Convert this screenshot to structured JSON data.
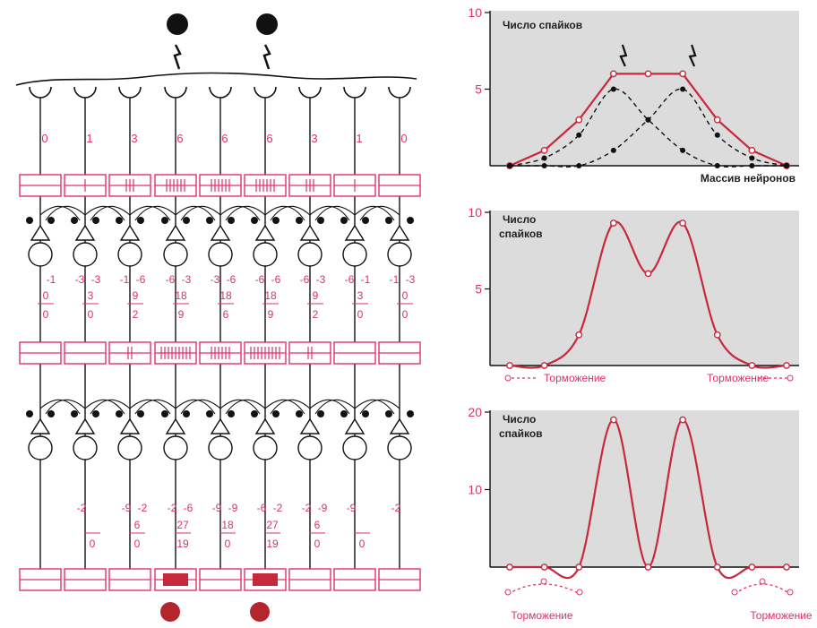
{
  "network": {
    "stimuli_top_count": 2,
    "stimulus_columns_top": [
      3,
      5
    ],
    "output_columns_bottom": [
      3,
      5
    ],
    "layer1": {
      "spike_counts": [
        "0",
        "1",
        "3",
        "6",
        "6",
        "6",
        "3",
        "1",
        "0"
      ]
    },
    "layer2": {
      "inhib_left": [
        "",
        "-3",
        "-1",
        "-6",
        "-3",
        "-6",
        "-6",
        "-6",
        "-1"
      ],
      "inhib_right": [
        "-1",
        "-3",
        "-6",
        "-3",
        "-6",
        "-6",
        "-3",
        "-1",
        "-3"
      ],
      "gain": [
        "0",
        "3",
        "9",
        "18",
        "18",
        "18",
        "9",
        "3",
        "0"
      ],
      "result": [
        "0",
        "0",
        "2",
        "9",
        "6",
        "9",
        "2",
        "0",
        "0"
      ]
    },
    "layer3": {
      "inhib_left": [
        "",
        "-2",
        "-9",
        "-2",
        "-9",
        "-6",
        "-2",
        "-9",
        "-2"
      ],
      "inhib_right": [
        "",
        "",
        "-2",
        "-6",
        "-9",
        "-2",
        "-9",
        "",
        ""
      ],
      "gain": [
        "",
        "",
        "6",
        "27",
        "18",
        "27",
        "6",
        "",
        ""
      ],
      "result": [
        "",
        "0",
        "0",
        "19",
        "0",
        "19",
        "0",
        "0",
        ""
      ]
    }
  },
  "charts": {
    "top": {
      "ylabel": "Число спайков",
      "xlabel": "Массив нейронов",
      "ytick_labels": [
        "10",
        "5"
      ]
    },
    "middle": {
      "ylabel": "Число спайков",
      "ytick_labels": [
        "10",
        "5"
      ],
      "inhibition_left": "Торможение",
      "inhibition_right": "Торможение"
    },
    "bottom": {
      "ylabel": "Число спайков",
      "ytick_labels": [
        "20",
        "10"
      ],
      "inhibition_left": "Торможение",
      "inhibition_right": "Торможение"
    }
  },
  "chart_data": [
    {
      "type": "line",
      "ylim": [
        0,
        10
      ],
      "x": [
        1,
        2,
        3,
        4,
        5,
        6,
        7,
        8,
        9
      ],
      "series": [
        {
          "values": [
            0,
            1,
            3,
            6,
            6,
            6,
            3,
            1,
            0
          ]
        },
        {
          "values": [
            0,
            0.5,
            2,
            5,
            3,
            1,
            0,
            0,
            0
          ]
        },
        {
          "values": [
            0,
            0,
            0,
            1,
            3,
            5,
            2,
            0.5,
            0
          ]
        }
      ]
    },
    {
      "type": "line",
      "ylim": [
        0,
        10
      ],
      "x": [
        1,
        2,
        3,
        4,
        5,
        6,
        7,
        8,
        9
      ],
      "series": [
        {
          "values": [
            0,
            0,
            2,
            9.3,
            6,
            9.3,
            2,
            0,
            0
          ]
        }
      ]
    },
    {
      "type": "line",
      "ylim": [
        0,
        20
      ],
      "x": [
        1,
        2,
        3,
        4,
        5,
        6,
        7,
        8,
        9
      ],
      "series": [
        {
          "values": [
            0,
            0,
            0,
            19,
            0,
            19,
            0,
            0,
            0
          ]
        }
      ]
    }
  ]
}
